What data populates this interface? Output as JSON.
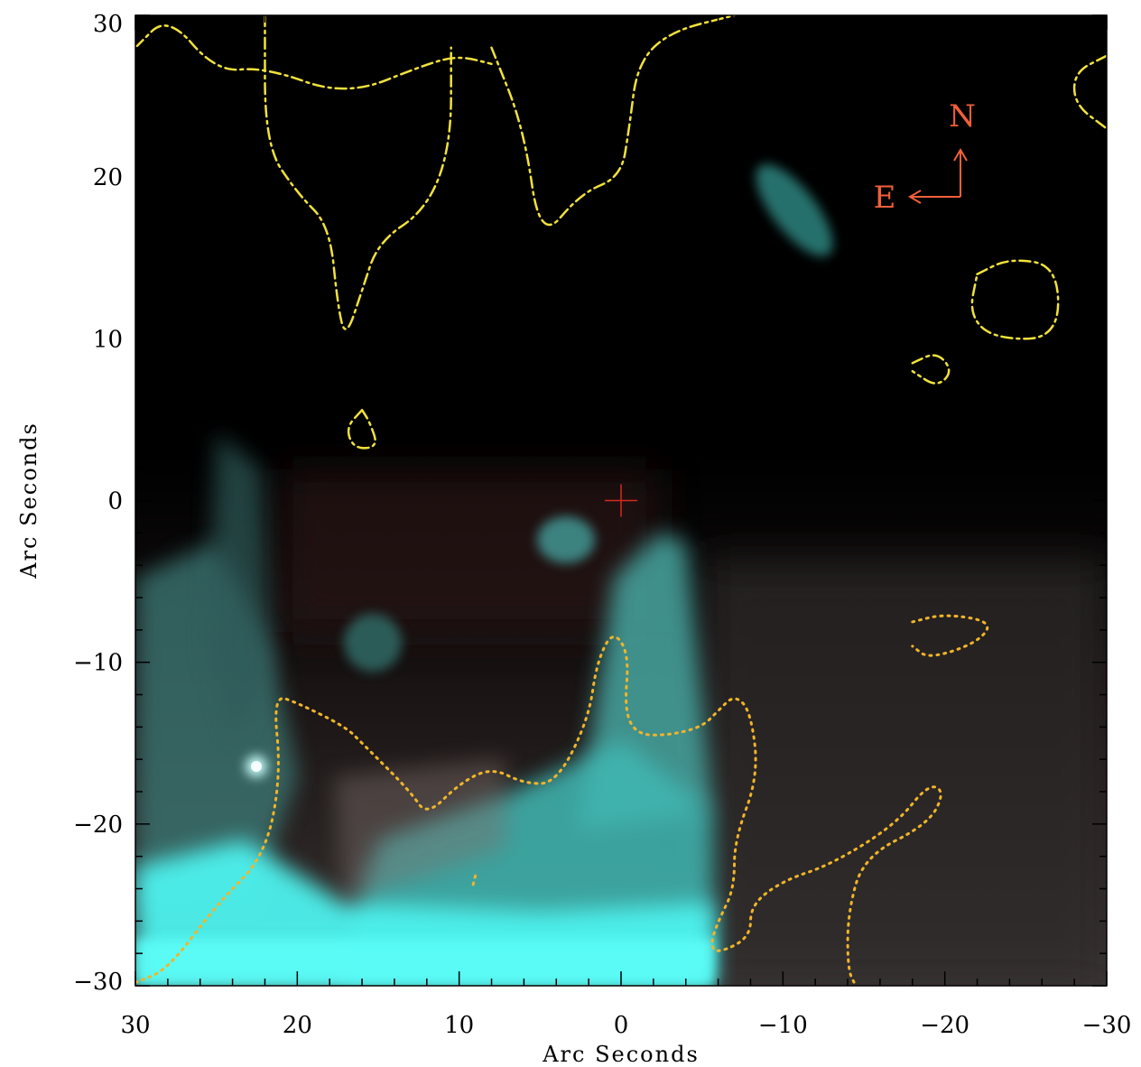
{
  "chart_data": {
    "type": "image",
    "title": "",
    "xlabel": "Arc Seconds",
    "ylabel": "Arc Seconds",
    "xlim": [
      30,
      -30
    ],
    "ylim": [
      -30,
      30
    ],
    "x_ticks": [
      30,
      20,
      10,
      0,
      -10,
      -20,
      -30
    ],
    "y_ticks": [
      30,
      20,
      10,
      0,
      -10,
      -20,
      -30
    ],
    "x_tick_labels": [
      "30",
      "20",
      "10",
      "0",
      "−10",
      "−20",
      "−30"
    ],
    "y_tick_labels": [
      "30",
      "20",
      "10",
      "0",
      "−10",
      "−20",
      "−30"
    ],
    "colors": {
      "background": "#000000",
      "dust_emission": "#45f4ee",
      "contour_dashdot": "#f2e23c",
      "contour_dotted": "#f0b52a",
      "center_marker": "#d42a1e",
      "compass": "#f0603a"
    },
    "compass": {
      "north": "N",
      "east": "E"
    },
    "center_marker": {
      "x": 0,
      "y": 0,
      "symbol": "+"
    },
    "contours": [
      {
        "style": "dash-dot",
        "points": [
          [
            30,
            28
          ],
          [
            28,
            30
          ],
          [
            25,
            26.5
          ],
          [
            22,
            26.8
          ],
          [
            17,
            25
          ],
          [
            12,
            27
          ],
          [
            10,
            27.5
          ],
          [
            8,
            27
          ]
        ]
      },
      {
        "style": "dash-dot",
        "points": [
          [
            22,
            30
          ],
          [
            22,
            22
          ],
          [
            20,
            19
          ],
          [
            18,
            17
          ],
          [
            17.5,
            12
          ],
          [
            17,
            10
          ],
          [
            16,
            13
          ],
          [
            15,
            16
          ],
          [
            12,
            18
          ],
          [
            10.5,
            22
          ],
          [
            10.5,
            28
          ]
        ]
      },
      {
        "style": "dash-dot",
        "points": [
          [
            8,
            28
          ],
          [
            6,
            23
          ],
          [
            5,
            16
          ],
          [
            2.5,
            19
          ],
          [
            0,
            20
          ],
          [
            -0.5,
            23
          ],
          [
            -1,
            27
          ],
          [
            -3,
            29
          ],
          [
            -7,
            30
          ]
        ]
      },
      {
        "style": "dash-dot",
        "points": [
          [
            -30,
            27.5
          ],
          [
            -28,
            26.5
          ],
          [
            -28,
            24.5
          ],
          [
            -30,
            23
          ]
        ]
      },
      {
        "style": "dash-dot",
        "points": [
          [
            -22,
            14
          ],
          [
            -24,
            15
          ],
          [
            -27,
            14.5
          ],
          [
            -27,
            10
          ],
          [
            -23,
            10
          ],
          [
            -21.5,
            11.5
          ],
          [
            -22,
            14
          ]
        ]
      },
      {
        "style": "dash-dot",
        "points": [
          [
            -18,
            8.5
          ],
          [
            -19.5,
            9.2
          ],
          [
            -20.5,
            8
          ],
          [
            -19.5,
            7
          ],
          [
            -18,
            8
          ]
        ]
      },
      {
        "style": "dash-dot",
        "points": [
          [
            16,
            5.6
          ],
          [
            17,
            4.5
          ],
          [
            16.5,
            3.2
          ],
          [
            15,
            3.3
          ],
          [
            15.5,
            4.8
          ],
          [
            16,
            5.6
          ]
        ]
      },
      {
        "style": "dotted",
        "points": [
          [
            30,
            -29.8
          ],
          [
            28,
            -29
          ],
          [
            25,
            -25
          ],
          [
            22,
            -22
          ],
          [
            21,
            -17
          ],
          [
            21.5,
            -12
          ],
          [
            20,
            -12.5
          ],
          [
            17,
            -14
          ],
          [
            16,
            -15
          ],
          [
            13,
            -18
          ],
          [
            12,
            -19.5
          ],
          [
            10,
            -17.5
          ],
          [
            8,
            -16.5
          ],
          [
            6,
            -17.5
          ],
          [
            4,
            -17.5
          ],
          [
            2,
            -13.5
          ],
          [
            1.5,
            -10
          ],
          [
            0.5,
            -8
          ],
          [
            -0.5,
            -9.5
          ],
          [
            -0.2,
            -13
          ],
          [
            -1,
            -14.5
          ],
          [
            -3,
            -14.5
          ],
          [
            -5,
            -14
          ],
          [
            -6,
            -13
          ],
          [
            -7,
            -12
          ],
          [
            -8,
            -13
          ],
          [
            -8.5,
            -17
          ],
          [
            -7,
            -21
          ],
          [
            -7,
            -24
          ],
          [
            -6,
            -26
          ],
          [
            -5.5,
            -27.5
          ],
          [
            -6,
            -28
          ],
          [
            -8,
            -27
          ],
          [
            -8,
            -25
          ],
          [
            -10,
            -23.5
          ],
          [
            -13,
            -22.5
          ],
          [
            -17,
            -20
          ],
          [
            -19,
            -17.5
          ],
          [
            -20,
            -18
          ],
          [
            -19,
            -20
          ],
          [
            -15,
            -22
          ],
          [
            -14,
            -25.5
          ],
          [
            -14,
            -29
          ],
          [
            -14.5,
            -30
          ]
        ]
      },
      {
        "style": "dotted",
        "points": [
          [
            -18,
            -7.5
          ],
          [
            -20,
            -7
          ],
          [
            -23,
            -7.5
          ],
          [
            -22,
            -8.8
          ],
          [
            -19,
            -9.8
          ],
          [
            -18,
            -9
          ]
        ]
      },
      {
        "style": "dotted",
        "points": [
          [
            9,
            -23.2
          ],
          [
            9.2,
            -24
          ]
        ]
      }
    ]
  }
}
